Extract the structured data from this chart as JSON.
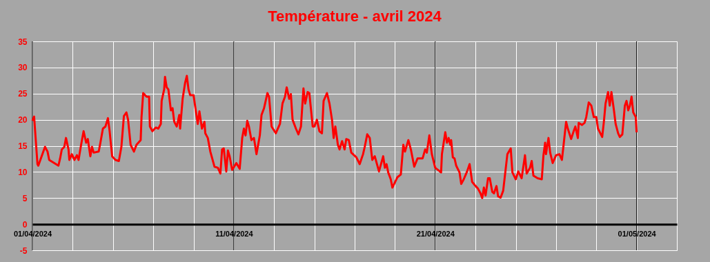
{
  "chart_data": {
    "type": "line",
    "title": "Température - avril 2024",
    "x": [
      "2024-04-01T00:00",
      "2024-04-01T02:00",
      "2024-04-01T06:00",
      "2024-04-01T07:00",
      "2024-04-01T15:00",
      "2024-04-01T18:00",
      "2024-04-01T20:00",
      "2024-04-02T04:00",
      "2024-04-02T07:00",
      "2024-04-02T09:00",
      "2024-04-02T11:00",
      "2024-04-02T14:00",
      "2024-04-02T16:00",
      "2024-04-02T19:00",
      "2024-04-02T20:00",
      "2024-04-02T23:00",
      "2024-04-03T02:00",
      "2024-04-03T05:00",
      "2024-04-03T07:00",
      "2024-04-03T10:00",
      "2024-04-03T13:00",
      "2024-04-03T16:00",
      "2024-04-03T18:00",
      "2024-04-03T21:00",
      "2024-04-03T23:00",
      "2024-04-04T01:00",
      "2024-04-04T07:00",
      "2024-04-04T09:00",
      "2024-04-04T12:00",
      "2024-04-04T15:00",
      "2024-04-04T18:00",
      "2024-04-04T20:00",
      "2024-04-04T23:00",
      "2024-04-05T03:00",
      "2024-04-05T07:00",
      "2024-04-05T10:00",
      "2024-04-05T13:00",
      "2024-04-05T16:00",
      "2024-04-05T18:00",
      "2024-04-05T21:00",
      "2024-04-06T01:00",
      "2024-04-06T04:00",
      "2024-04-06T09:00",
      "2024-04-06T10:00",
      "2024-04-06T12:00",
      "2024-04-06T16:00",
      "2024-04-06T19:00",
      "2024-04-06T20:00",
      "2024-04-06T23:00",
      "2024-04-07T03:00",
      "2024-04-07T06:00",
      "2024-04-07T09:00",
      "2024-04-07T10:00",
      "2024-04-07T13:00",
      "2024-04-07T14:00",
      "2024-04-07T16:00",
      "2024-04-07T18:00",
      "2024-04-07T21:00",
      "2024-04-07T23:00",
      "2024-04-08T01:00",
      "2024-04-08T04:00",
      "2024-04-08T07:00",
      "2024-04-08T08:00",
      "2024-04-08T11:00",
      "2024-04-08T14:00",
      "2024-04-08T16:00",
      "2024-04-08T18:00",
      "2024-04-08T20:00",
      "2024-04-09T00:00",
      "2024-04-09T03:00",
      "2024-04-09T05:00",
      "2024-04-09T07:00",
      "2024-04-09T10:00",
      "2024-04-09T13:00",
      "2024-04-09T14:00",
      "2024-04-09T17:00",
      "2024-04-09T20:00",
      "2024-04-10T01:00",
      "2024-04-10T05:00",
      "2024-04-10T08:00",
      "2024-04-10T10:00",
      "2024-04-10T12:00",
      "2024-04-10T15:00",
      "2024-04-10T17:00",
      "2024-04-10T19:00",
      "2024-04-10T22:00",
      "2024-04-11T03:00",
      "2024-04-11T07:00",
      "2024-04-11T10:00",
      "2024-04-11T12:00",
      "2024-04-11T14:00",
      "2024-04-11T16:00",
      "2024-04-11T18:00",
      "2024-04-11T21:00",
      "2024-04-12T00:00",
      "2024-04-12T03:00",
      "2024-04-12T07:00",
      "2024-04-12T09:00",
      "2024-04-12T12:00",
      "2024-04-12T13:00",
      "2024-04-12T16:00",
      "2024-04-12T18:00",
      "2024-04-12T21:00",
      "2024-04-13T02:00",
      "2024-04-13T07:00",
      "2024-04-13T10:00",
      "2024-04-13T13:00",
      "2024-04-13T15:00",
      "2024-04-13T18:00",
      "2024-04-13T20:00",
      "2024-04-13T22:00",
      "2024-04-14T02:00",
      "2024-04-14T05:00",
      "2024-04-14T08:00",
      "2024-04-14T11:00",
      "2024-04-14T13:00",
      "2024-04-14T16:00",
      "2024-04-14T18:00",
      "2024-04-14T22:00",
      "2024-04-15T00:00",
      "2024-04-15T03:00",
      "2024-04-15T06:00",
      "2024-04-15T09:00",
      "2024-04-15T11:00",
      "2024-04-15T15:00",
      "2024-04-15T18:00",
      "2024-04-15T21:00",
      "2024-04-15T23:00",
      "2024-04-16T01:00",
      "2024-04-16T04:00",
      "2024-04-16T06:00",
      "2024-04-16T09:00",
      "2024-04-16T12:00",
      "2024-04-16T14:00",
      "2024-04-16T17:00",
      "2024-04-16T20:00",
      "2024-04-17T02:00",
      "2024-04-17T06:00",
      "2024-04-17T10:00",
      "2024-04-17T12:00",
      "2024-04-17T15:00",
      "2024-04-17T18:00",
      "2024-04-17T21:00",
      "2024-04-18T00:00",
      "2024-04-18T05:00",
      "2024-04-18T10:00",
      "2024-04-18T12:00",
      "2024-04-18T14:00",
      "2024-04-18T16:00",
      "2024-04-18T19:00",
      "2024-04-18T21:00",
      "2024-04-19T03:00",
      "2024-04-19T07:00",
      "2024-04-19T10:00",
      "2024-04-19T12:00",
      "2024-04-19T16:00",
      "2024-04-19T19:00",
      "2024-04-19T23:00",
      "2024-04-20T03:00",
      "2024-04-20T09:00",
      "2024-04-20T12:00",
      "2024-04-20T14:00",
      "2024-04-20T17:00",
      "2024-04-20T20:00",
      "2024-04-21T00:00",
      "2024-04-21T04:00",
      "2024-04-21T07:00",
      "2024-04-21T08:00",
      "2024-04-21T12:00",
      "2024-04-21T14:00",
      "2024-04-21T16:00",
      "2024-04-21T18:00",
      "2024-04-21T19:00",
      "2024-04-21T21:00",
      "2024-04-21T23:00",
      "2024-04-22T01:00",
      "2024-04-22T05:00",
      "2024-04-22T07:00",
      "2024-04-22T10:00",
      "2024-04-22T14:00",
      "2024-04-22T17:00",
      "2024-04-22T20:00",
      "2024-04-22T23:00",
      "2024-04-23T03:00",
      "2024-04-23T06:00",
      "2024-04-23T08:00",
      "2024-04-23T10:00",
      "2024-04-23T12:00",
      "2024-04-23T15:00",
      "2024-04-23T17:00",
      "2024-04-23T20:00",
      "2024-04-23T22:00",
      "2024-04-24T01:00",
      "2024-04-24T03:00",
      "2024-04-24T06:00",
      "2024-04-24T09:00",
      "2024-04-24T12:00",
      "2024-04-24T14:00",
      "2024-04-24T18:00",
      "2024-04-24T20:00",
      "2024-04-25T00:00",
      "2024-04-25T03:00",
      "2024-04-25T07:00",
      "2024-04-25T11:00",
      "2024-04-25T13:00",
      "2024-04-25T17:00",
      "2024-04-25T19:00",
      "2024-04-25T21:00",
      "2024-04-26T02:00",
      "2024-04-26T07:00",
      "2024-04-26T09:00",
      "2024-04-26T11:00",
      "2024-04-26T12:00",
      "2024-04-26T15:00",
      "2024-04-26T17:00",
      "2024-04-26T20:00",
      "2024-04-27T00:00",
      "2024-04-27T04:00",
      "2024-04-27T07:00",
      "2024-04-27T09:00",
      "2024-04-27T12:00",
      "2024-04-27T14:00",
      "2024-04-27T18:00",
      "2024-04-27T21:00",
      "2024-04-27T23:00",
      "2024-04-28T02:00",
      "2024-04-28T03:00",
      "2024-04-28T07:00",
      "2024-04-28T10:00",
      "2024-04-28T12:00",
      "2024-04-28T15:00",
      "2024-04-28T18:00",
      "2024-04-28T21:00",
      "2024-04-29T00:00",
      "2024-04-29T02:00",
      "2024-04-29T07:00",
      "2024-04-29T09:00",
      "2024-04-29T11:00",
      "2024-04-29T14:00",
      "2024-04-29T16:00",
      "2024-04-29T18:00",
      "2024-04-29T21:00",
      "2024-04-29T23:00",
      "2024-04-30T02:00",
      "2024-04-30T04:00",
      "2024-04-30T07:00",
      "2024-04-30T10:00",
      "2024-04-30T12:00",
      "2024-04-30T14:00",
      "2024-04-30T16:00",
      "2024-04-30T18:00",
      "2024-04-30T20:00",
      "2024-04-30T23:00",
      "2024-05-01T00:00"
    ],
    "series": [
      {
        "color": "#ff0000",
        "values": [
          19.8,
          20.6,
          11.5,
          11.2,
          14.8,
          13.9,
          12.3,
          11.5,
          11.2,
          12.6,
          14.3,
          14.8,
          16.5,
          14.3,
          12.3,
          13.4,
          12.3,
          13.2,
          12.3,
          15.2,
          17.8,
          15.6,
          16.3,
          13.0,
          14.8,
          13.7,
          13.9,
          15.6,
          18.3,
          18.7,
          20.3,
          17.8,
          13.0,
          12.3,
          12.1,
          14.8,
          20.7,
          21.4,
          20.0,
          15.2,
          13.9,
          15.2,
          16.1,
          20.5,
          25.1,
          24.4,
          24.4,
          18.7,
          17.8,
          18.5,
          18.3,
          19.2,
          23.6,
          25.8,
          28.2,
          26.2,
          25.8,
          21.8,
          22.2,
          19.6,
          18.7,
          20.9,
          18.3,
          24.0,
          27.1,
          28.4,
          25.8,
          24.7,
          24.7,
          21.4,
          19.2,
          21.6,
          18.3,
          19.6,
          17.4,
          16.5,
          13.9,
          11.0,
          10.8,
          9.7,
          14.3,
          14.5,
          10.1,
          14.1,
          13.0,
          10.4,
          11.7,
          10.6,
          16.5,
          18.3,
          17.0,
          19.8,
          18.7,
          16.1,
          16.5,
          13.4,
          17.0,
          20.9,
          22.2,
          22.9,
          25.1,
          24.4,
          18.7,
          17.4,
          19.2,
          23.1,
          24.4,
          26.2,
          24.0,
          24.9,
          20.0,
          18.3,
          17.2,
          18.7,
          26.0,
          23.1,
          25.3,
          25.1,
          18.7,
          18.7,
          20.0,
          17.8,
          17.4,
          23.6,
          25.1,
          23.1,
          20.0,
          16.5,
          18.7,
          15.2,
          14.3,
          15.9,
          14.3,
          16.3,
          16.1,
          13.7,
          12.8,
          11.5,
          13.4,
          14.8,
          17.2,
          16.5,
          12.3,
          13.0,
          10.1,
          13.0,
          10.8,
          11.5,
          9.9,
          8.6,
          7.0,
          9.0,
          9.5,
          15.2,
          13.9,
          16.1,
          14.3,
          11.0,
          12.6,
          12.6,
          14.3,
          13.7,
          17.0,
          13.4,
          10.8,
          10.3,
          9.9,
          13.4,
          17.6,
          15.6,
          16.5,
          15.2,
          16.1,
          12.8,
          12.6,
          11.2,
          9.9,
          7.7,
          8.6,
          10.1,
          11.5,
          8.1,
          7.5,
          6.8,
          5.9,
          5.0,
          7.0,
          5.5,
          8.8,
          8.8,
          6.2,
          5.9,
          7.3,
          5.3,
          5.1,
          6.4,
          10.6,
          13.4,
          14.5,
          9.9,
          8.6,
          10.1,
          8.8,
          13.2,
          9.7,
          10.8,
          12.1,
          9.3,
          8.8,
          8.6,
          13.2,
          15.6,
          13.4,
          16.5,
          13.7,
          11.7,
          13.2,
          13.4,
          12.3,
          15.2,
          19.6,
          18.3,
          16.3,
          17.8,
          18.7,
          16.5,
          19.4,
          19.0,
          19.4,
          20.5,
          23.3,
          22.7,
          20.5,
          20.5,
          18.3,
          16.7,
          19.6,
          23.1,
          25.3,
          22.7,
          25.3,
          21.8,
          19.2,
          17.4,
          16.7,
          17.2,
          22.7,
          23.6,
          21.8,
          22.7,
          24.4,
          21.4,
          20.5,
          17.6
        ]
      }
    ],
    "xlim": [
      "2024-04-01T00:00",
      "2024-05-03T00:00"
    ],
    "xticks": [
      {
        "value": "2024-04-01T00:00",
        "label": "01/04/2024"
      },
      {
        "value": "2024-04-03T00:00",
        "label": null
      },
      {
        "value": "2024-04-05T00:00",
        "label": null
      },
      {
        "value": "2024-04-07T00:00",
        "label": null
      },
      {
        "value": "2024-04-09T00:00",
        "label": null
      },
      {
        "value": "2024-04-11T00:00",
        "label": "11/04/2024"
      },
      {
        "value": "2024-04-13T00:00",
        "label": null
      },
      {
        "value": "2024-04-15T00:00",
        "label": null
      },
      {
        "value": "2024-04-17T00:00",
        "label": null
      },
      {
        "value": "2024-04-19T00:00",
        "label": null
      },
      {
        "value": "2024-04-21T00:00",
        "label": "21/04/2024"
      },
      {
        "value": "2024-04-23T00:00",
        "label": null
      },
      {
        "value": "2024-04-25T00:00",
        "label": null
      },
      {
        "value": "2024-04-27T00:00",
        "label": null
      },
      {
        "value": "2024-04-29T00:00",
        "label": null
      },
      {
        "value": "2024-05-01T00:00",
        "label": "01/05/2024"
      },
      {
        "value": "2024-05-03T00:00",
        "label": null
      }
    ],
    "ylim": [
      -5,
      35
    ],
    "yticks": [
      -5,
      0,
      5,
      10,
      15,
      20,
      25,
      30,
      35
    ],
    "grid": true
  }
}
